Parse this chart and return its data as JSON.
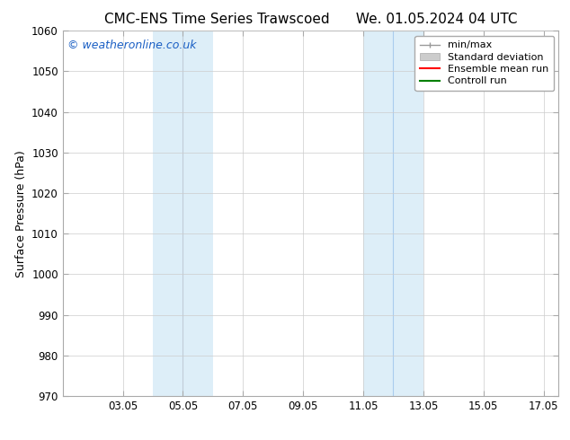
{
  "title_left": "CMC-ENS Time Series Trawscoed",
  "title_right": "We. 01.05.2024 04 UTC",
  "ylabel": "Surface Pressure (hPa)",
  "xlim": [
    1.05,
    17.55
  ],
  "ylim": [
    970,
    1060
  ],
  "yticks": [
    970,
    980,
    990,
    1000,
    1010,
    1020,
    1030,
    1040,
    1050,
    1060
  ],
  "xticks": [
    3.05,
    5.05,
    7.05,
    9.05,
    11.05,
    13.05,
    15.05,
    17.05
  ],
  "xticklabels": [
    "03.05",
    "05.05",
    "07.05",
    "09.05",
    "11.05",
    "13.05",
    "15.05",
    "17.05"
  ],
  "shaded_regions": [
    {
      "xmin": 4.05,
      "xmax": 5.05,
      "color": "#ddeef8"
    },
    {
      "xmin": 5.05,
      "xmax": 6.05,
      "color": "#ddeef8"
    },
    {
      "xmin": 11.05,
      "xmax": 12.05,
      "color": "#ddeef8"
    },
    {
      "xmin": 12.05,
      "xmax": 13.05,
      "color": "#ddeef8"
    }
  ],
  "shaded_dividers": [
    5.05,
    12.05
  ],
  "legend_entries": [
    {
      "label": "min/max",
      "color": "#aaaaaa",
      "type": "minmax"
    },
    {
      "label": "Standard deviation",
      "color": "#cccccc",
      "type": "patch"
    },
    {
      "label": "Ensemble mean run",
      "color": "#ff0000",
      "type": "line"
    },
    {
      "label": "Controll run",
      "color": "#008000",
      "type": "line"
    }
  ],
  "watermark": "© weatheronline.co.uk",
  "watermark_color": "#1a5fc4",
  "background_color": "#ffffff",
  "plot_bg_color": "#ffffff",
  "grid_color": "#cccccc",
  "spine_color": "#aaaaaa",
  "title_fontsize": 11,
  "tick_fontsize": 8.5,
  "ylabel_fontsize": 9,
  "legend_fontsize": 8,
  "watermark_fontsize": 9
}
